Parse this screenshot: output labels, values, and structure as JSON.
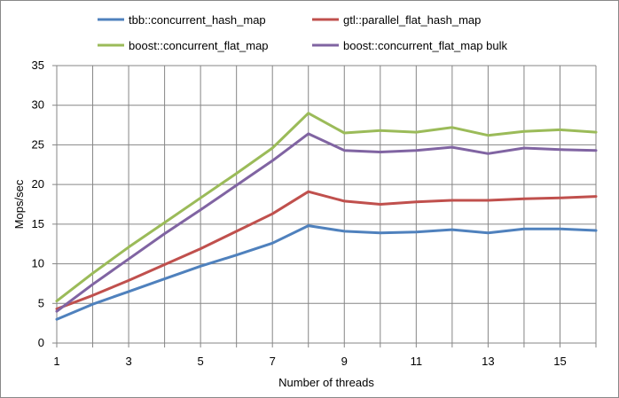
{
  "chart_data": {
    "type": "line",
    "title": "",
    "xlabel": "Number of threads",
    "ylabel": "Mops/sec",
    "xlim": [
      1,
      16
    ],
    "ylim": [
      0,
      35
    ],
    "x": [
      1,
      2,
      3,
      4,
      5,
      6,
      7,
      8,
      9,
      10,
      11,
      12,
      13,
      14,
      15,
      16
    ],
    "x_ticks": [
      1,
      3,
      5,
      7,
      9,
      11,
      13,
      15
    ],
    "y_ticks": [
      0,
      5,
      10,
      15,
      20,
      25,
      30,
      35
    ],
    "grid": "vertical and horizontal",
    "legend_position": "top",
    "series": [
      {
        "name": "tbb::concurrent_hash_map",
        "color": "#4F81BD",
        "values": [
          3.0,
          4.9,
          6.5,
          8.1,
          9.7,
          11.1,
          12.6,
          14.8,
          14.1,
          13.9,
          14.0,
          14.3,
          13.9,
          14.4,
          14.4,
          14.2
        ]
      },
      {
        "name": "gtl::parallel_flat_hash_map",
        "color": "#C0504D",
        "values": [
          4.3,
          6.0,
          7.9,
          9.9,
          11.9,
          14.1,
          16.3,
          19.1,
          17.9,
          17.5,
          17.8,
          18.0,
          18.0,
          18.2,
          18.3,
          18.5
        ]
      },
      {
        "name": "boost::concurrent_flat_map",
        "color": "#9BBB59",
        "values": [
          5.3,
          8.8,
          12.1,
          15.2,
          18.3,
          21.4,
          24.6,
          29.0,
          26.5,
          26.8,
          26.6,
          27.2,
          26.2,
          26.7,
          26.9,
          26.6
        ]
      },
      {
        "name": "boost::concurrent_flat_map bulk",
        "color": "#8064A2",
        "values": [
          4.0,
          7.4,
          10.6,
          13.8,
          16.8,
          19.9,
          23.0,
          26.4,
          24.3,
          24.1,
          24.3,
          24.7,
          23.9,
          24.6,
          24.4,
          24.3
        ]
      }
    ]
  }
}
